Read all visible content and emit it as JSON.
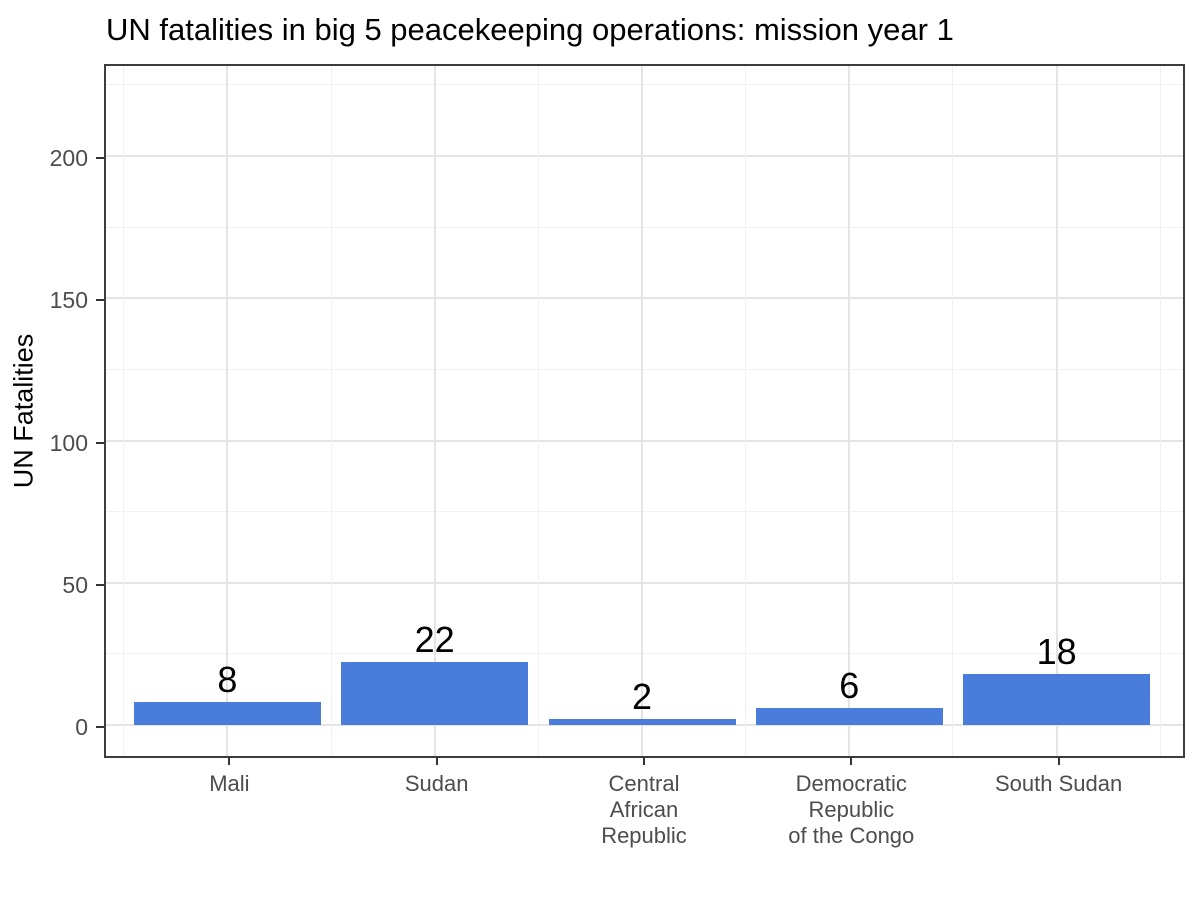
{
  "chart_data": {
    "type": "bar",
    "title": "UN fatalities in big 5 peacekeeping operations: mission year 1",
    "ylabel": "UN Fatalities",
    "xlabel": "",
    "categories": [
      "Mali",
      "Sudan",
      "Central\nAfrican\nRepublic",
      "Democratic\nRepublic\nof the Congo",
      "South Sudan"
    ],
    "values": [
      8,
      22,
      2,
      6,
      18
    ],
    "bar_labels": [
      "8",
      "22",
      "2",
      "6",
      "18"
    ],
    "y_ticks": [
      0,
      50,
      100,
      150,
      200
    ],
    "y_minor_ticks": [
      25,
      75,
      125,
      175,
      225
    ],
    "ylim": [
      -10.5,
      232.5
    ],
    "grid": "on",
    "legend": "none",
    "bar_color": "#4A7CDB",
    "axis_text_color": "#4D4D4D",
    "grid_major_color": "#E4E4E4",
    "grid_minor_color": "#F1F1F1",
    "panel_border_color": "#3D3D3D",
    "tick_color": "#333333"
  }
}
